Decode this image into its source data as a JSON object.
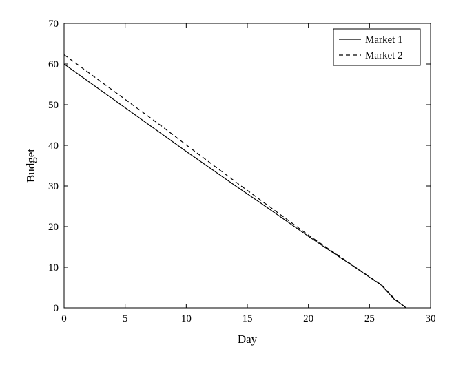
{
  "chart_data": {
    "type": "line",
    "title": "",
    "xlabel": "Day",
    "ylabel": "Budget",
    "xlim": [
      0,
      30
    ],
    "ylim": [
      0,
      70
    ],
    "xticks": [
      0,
      5,
      10,
      15,
      20,
      25,
      30
    ],
    "yticks": [
      0,
      10,
      20,
      30,
      40,
      50,
      60,
      70
    ],
    "grid": false,
    "legend_position": "top-right",
    "series": [
      {
        "name": "Market 1",
        "style": "solid",
        "color": "#000000",
        "x": [
          0,
          2,
          4,
          6,
          8,
          10,
          12,
          14,
          16,
          18,
          20,
          22,
          24,
          26,
          27,
          28
        ],
        "y": [
          60.0,
          55.7,
          51.4,
          47.1,
          42.8,
          38.5,
          34.3,
          30.1,
          26.0,
          21.8,
          17.6,
          13.6,
          9.6,
          5.5,
          2.2,
          0.0
        ]
      },
      {
        "name": "Market 2",
        "style": "dashed",
        "color": "#000000",
        "x": [
          0,
          2,
          4,
          6,
          8,
          10,
          12,
          14,
          16,
          18,
          20,
          22,
          24,
          26,
          27,
          28
        ],
        "y": [
          62.3,
          57.9,
          53.5,
          49.1,
          44.7,
          40.1,
          35.6,
          31.1,
          26.7,
          22.3,
          17.9,
          13.8,
          9.7,
          5.6,
          2.4,
          0.0
        ]
      }
    ]
  }
}
